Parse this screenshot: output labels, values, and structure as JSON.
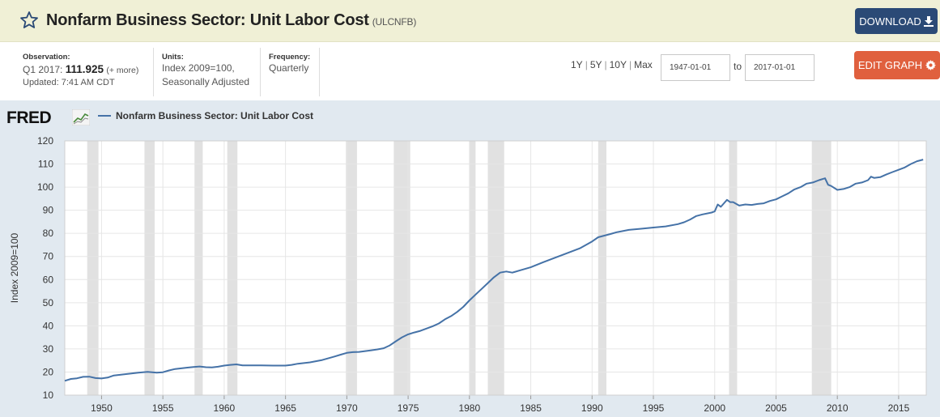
{
  "header": {
    "title": "Nonfarm Business Sector: Unit Labor Cost",
    "series_id": "(ULCNFB)",
    "download_label": "DOWNLOAD"
  },
  "observation": {
    "label": "Observation:",
    "period": "Q1 2017:",
    "value": "111.925",
    "more": "(+ more)",
    "updated": "Updated: 7:41 AM CDT"
  },
  "units": {
    "label": "Units:",
    "line1": "Index 2009=100,",
    "line2": "Seasonally Adjusted"
  },
  "frequency": {
    "label": "Frequency:",
    "value": "Quarterly"
  },
  "ranges": [
    "1Y",
    "5Y",
    "10Y",
    "Max"
  ],
  "date_range": {
    "start": "1947-01-01",
    "to_label": "to",
    "end": "2017-01-01"
  },
  "edit_label": "EDIT GRAPH",
  "logo": {
    "text": "FRED"
  },
  "chart_data": {
    "type": "line",
    "title": "Nonfarm Business Sector: Unit Labor Cost",
    "ylabel": "Index 2009=100",
    "xlabel": "",
    "xlim": [
      1947.0,
      2017.25
    ],
    "ylim": [
      10,
      120
    ],
    "x_ticks": [
      1950,
      1955,
      1960,
      1965,
      1970,
      1975,
      1980,
      1985,
      1990,
      1995,
      2000,
      2005,
      2010,
      2015
    ],
    "y_ticks": [
      10,
      20,
      30,
      40,
      50,
      60,
      70,
      80,
      90,
      100,
      110,
      120
    ],
    "grid": true,
    "line_color": "#4572a7",
    "recessions": [
      [
        1948.83,
        1949.75
      ],
      [
        1953.5,
        1954.33
      ],
      [
        1957.58,
        1958.25
      ],
      [
        1960.25,
        1961.08
      ],
      [
        1969.92,
        1970.83
      ],
      [
        1973.83,
        1975.17
      ],
      [
        1980.0,
        1980.5
      ],
      [
        1981.5,
        1982.83
      ],
      [
        1990.5,
        1991.17
      ],
      [
        2001.17,
        2001.83
      ],
      [
        2007.92,
        2009.5
      ]
    ],
    "series": [
      {
        "name": "Nonfarm Business Sector: Unit Labor Cost",
        "x": [
          1947.0,
          1947.5,
          1948.0,
          1948.5,
          1949.0,
          1949.5,
          1950.0,
          1950.5,
          1951.0,
          1951.5,
          1952.0,
          1953.0,
          1953.75,
          1954.5,
          1955.0,
          1955.5,
          1956.0,
          1956.5,
          1957.0,
          1957.5,
          1958.0,
          1958.5,
          1959.0,
          1959.5,
          1960.0,
          1960.5,
          1961.0,
          1961.5,
          1962.0,
          1963.0,
          1964.0,
          1965.0,
          1965.5,
          1966.0,
          1967.0,
          1968.0,
          1969.0,
          1969.5,
          1970.0,
          1970.5,
          1971.0,
          1972.0,
          1972.5,
          1973.0,
          1973.5,
          1974.0,
          1974.5,
          1975.0,
          1975.5,
          1976.0,
          1977.0,
          1977.5,
          1978.0,
          1978.5,
          1979.0,
          1979.5,
          1980.0,
          1980.5,
          1981.0,
          1981.5,
          1982.0,
          1982.5,
          1983.0,
          1983.5,
          1984.0,
          1985.0,
          1986.0,
          1987.0,
          1988.0,
          1989.0,
          1990.0,
          1990.5,
          1991.0,
          1991.5,
          1992.0,
          1993.0,
          1994.0,
          1995.0,
          1996.0,
          1997.0,
          1997.5,
          1998.0,
          1998.5,
          1999.0,
          1999.75,
          2000.0,
          2000.25,
          2000.5,
          2000.75,
          2001.0,
          2001.25,
          2001.5,
          2002.0,
          2002.5,
          2003.0,
          2003.5,
          2004.0,
          2004.5,
          2005.0,
          2005.5,
          2006.0,
          2006.5,
          2007.0,
          2007.5,
          2008.0,
          2008.5,
          2009.0,
          2009.25,
          2009.5,
          2010.0,
          2010.5,
          2011.0,
          2011.5,
          2012.0,
          2012.5,
          2012.75,
          2013.0,
          2013.5,
          2014.0,
          2014.5,
          2015.0,
          2015.5,
          2016.0,
          2016.5,
          2017.0
        ],
        "values": [
          16.2,
          17.0,
          17.3,
          17.9,
          18.0,
          17.4,
          17.2,
          17.6,
          18.5,
          18.8,
          19.1,
          19.7,
          20.1,
          19.7,
          19.9,
          20.7,
          21.3,
          21.6,
          21.9,
          22.2,
          22.4,
          22.1,
          22.0,
          22.3,
          22.8,
          23.1,
          23.3,
          22.9,
          22.9,
          22.9,
          22.8,
          22.8,
          23.1,
          23.6,
          24.2,
          25.2,
          26.7,
          27.5,
          28.3,
          28.6,
          28.7,
          29.4,
          29.8,
          30.3,
          31.5,
          33.3,
          35.0,
          36.3,
          37.1,
          37.8,
          39.8,
          41.0,
          42.8,
          44.2,
          46.0,
          48.2,
          51.0,
          53.5,
          56.0,
          58.5,
          61.0,
          63.0,
          63.5,
          63.0,
          63.8,
          65.3,
          67.5,
          69.5,
          71.5,
          73.5,
          76.5,
          78.3,
          79.0,
          79.7,
          80.5,
          81.5,
          82.0,
          82.5,
          83.0,
          84.0,
          84.8,
          86.0,
          87.5,
          88.2,
          89.0,
          89.5,
          92.5,
          91.5,
          93.0,
          94.5,
          93.5,
          93.5,
          92.0,
          92.5,
          92.3,
          92.7,
          93.0,
          94.0,
          94.7,
          96.0,
          97.3,
          99.0,
          100.0,
          101.5,
          102.0,
          103.0,
          103.8,
          101.0,
          100.5,
          98.8,
          99.2,
          100.0,
          101.5,
          102.0,
          103.0,
          104.5,
          104.0,
          104.3,
          105.5,
          106.5,
          107.5,
          108.5,
          110.0,
          111.2,
          111.9
        ]
      }
    ]
  }
}
